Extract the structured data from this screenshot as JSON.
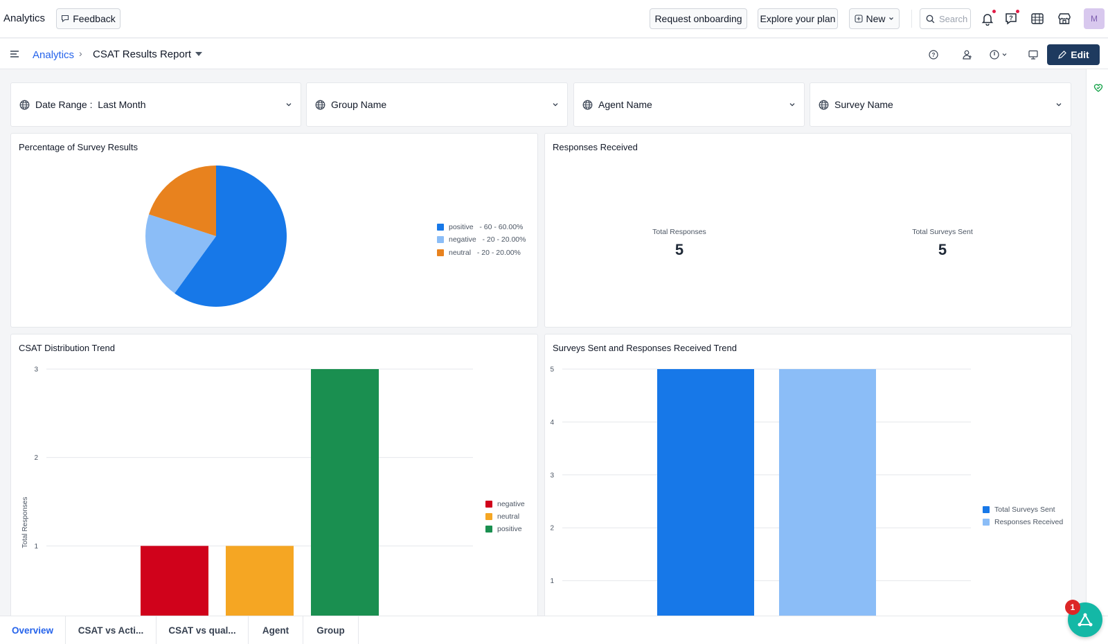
{
  "app": {
    "title": "Analytics"
  },
  "topbar": {
    "feedback_label": "Feedback",
    "onboarding_label": "Request onboarding",
    "plan_label": "Explore your plan",
    "new_label": "New",
    "search_placeholder": "Search",
    "avatar_initial": "M",
    "icons": [
      "bell-icon",
      "help-icon",
      "apps-icon",
      "marketplace-icon"
    ]
  },
  "breadcrumb": {
    "root": "Analytics",
    "separator": "›",
    "current": "CSAT Results Report"
  },
  "toolbar": {
    "edit_label": "Edit"
  },
  "filters": [
    {
      "label": "Date Range :  Last Month"
    },
    {
      "label": "Group Name"
    },
    {
      "label": "Agent Name"
    },
    {
      "label": "Survey Name"
    }
  ],
  "cards": {
    "pie": {
      "title": "Percentage of Survey Results"
    },
    "responses": {
      "title": "Responses Received",
      "total_responses_label": "Total Responses",
      "total_responses_value": "5",
      "total_sent_label": "Total Surveys Sent",
      "total_sent_value": "5"
    },
    "csat_trend": {
      "title": "CSAT Distribution Trend"
    },
    "surveys_trend": {
      "title": "Surveys Sent and Responses Received Trend"
    }
  },
  "chart_data": [
    {
      "type": "pie",
      "title": "Percentage of Survey Results",
      "slices": [
        {
          "label": "positive",
          "value": 60,
          "percent": "60.00%",
          "color": "#1778e8",
          "legend": "positive   - 60 - 60.00%"
        },
        {
          "label": "negative",
          "value": 20,
          "percent": "20.00%",
          "color": "#8bbdf7",
          "legend": "negative   - 20 - 20.00%"
        },
        {
          "label": "neutral",
          "value": 20,
          "percent": "20.00%",
          "color": "#e8821e",
          "legend": "neutral   - 20 - 20.00%"
        }
      ]
    },
    {
      "type": "bar",
      "title": "CSAT Distribution Trend",
      "ylabel": "Total Responses",
      "ylim": [
        0,
        3
      ],
      "yticks": [
        1,
        2,
        3
      ],
      "series": [
        {
          "name": "negative",
          "values": [
            1
          ],
          "color": "#d0021b"
        },
        {
          "name": "neutral",
          "values": [
            1
          ],
          "color": "#f5a623"
        },
        {
          "name": "positive",
          "values": [
            3
          ],
          "color": "#1a8f50"
        }
      ]
    },
    {
      "type": "bar",
      "title": "Surveys Sent and Responses Received Trend",
      "ylim": [
        0,
        5
      ],
      "yticks": [
        1,
        2,
        3,
        4,
        5
      ],
      "series": [
        {
          "name": "Total Surveys Sent",
          "values": [
            5
          ],
          "color": "#1778e8"
        },
        {
          "name": "Responses Received",
          "values": [
            5
          ],
          "color": "#8bbdf7"
        }
      ]
    }
  ],
  "tabs": [
    {
      "label": "Overview",
      "active": true
    },
    {
      "label": "CSAT vs Acti..."
    },
    {
      "label": "CSAT vs qual..."
    },
    {
      "label": "Agent"
    },
    {
      "label": "Group"
    }
  ],
  "fab": {
    "badge": "1"
  }
}
